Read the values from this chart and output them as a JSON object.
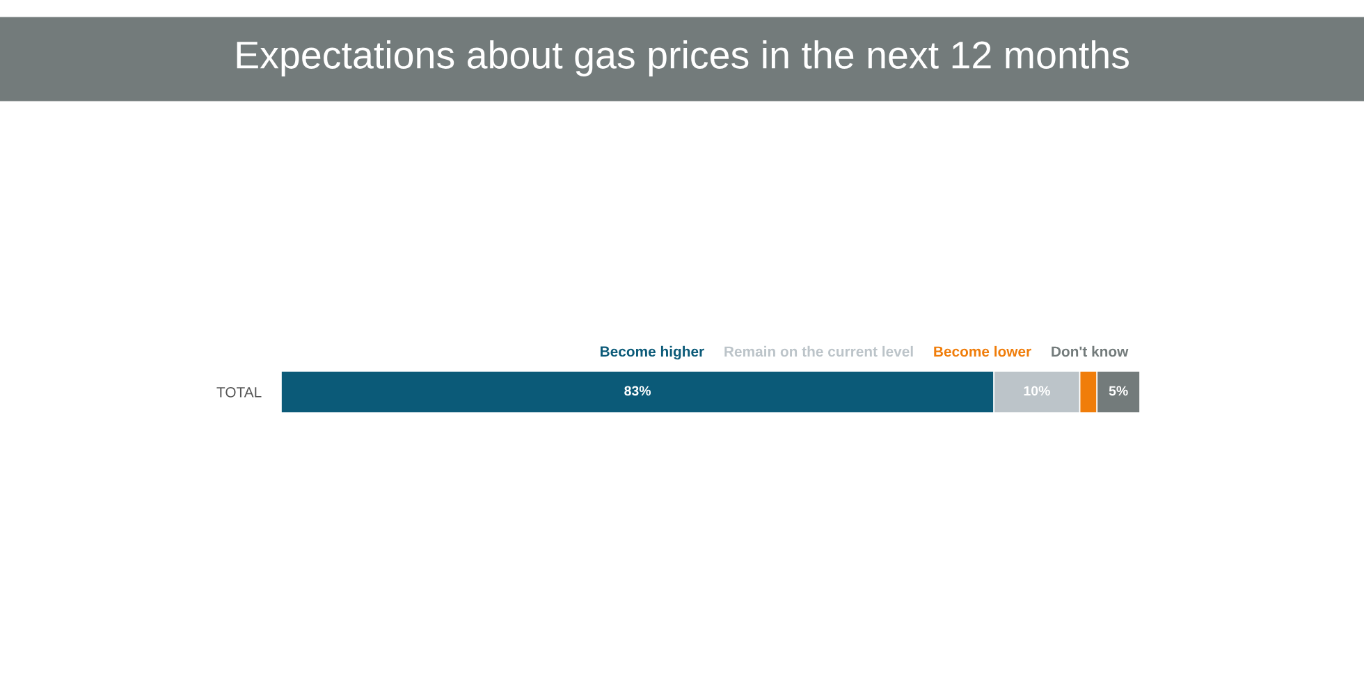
{
  "chart_data": {
    "type": "bar",
    "orientation": "horizontal",
    "stacked": true,
    "title": "Expectations about gas prices in the next 12 months",
    "categories": [
      "TOTAL"
    ],
    "legend": "top right",
    "series": [
      {
        "name": "Become higher",
        "color": "#0b5a78",
        "values": [
          83
        ],
        "value_labels": [
          "83%"
        ]
      },
      {
        "name": "Remain on the current level",
        "color": "#bcc4c9",
        "values": [
          10
        ],
        "value_labels": [
          "10%"
        ]
      },
      {
        "name": "Become lower",
        "color": "#f07d0a",
        "values": [
          2
        ],
        "value_labels": [
          null
        ]
      },
      {
        "name": "Don't know",
        "color": "#737b7b",
        "values": [
          5
        ],
        "value_labels": [
          "5%"
        ]
      }
    ]
  }
}
